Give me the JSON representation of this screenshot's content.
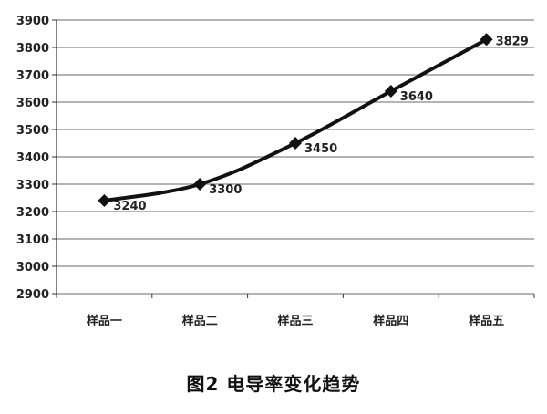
{
  "chart_data": {
    "type": "line",
    "categories": [
      "样品一",
      "样品二",
      "样品三",
      "样品四",
      "样品五"
    ],
    "series": [
      {
        "values": [
          3240,
          3300,
          3450,
          3640,
          3829
        ]
      }
    ],
    "data_labels": [
      "3240",
      "3300",
      "3450",
      "3640",
      "3829"
    ],
    "ylim": [
      2900,
      3900
    ],
    "y_ticks": [
      "2900",
      "3000",
      "3100",
      "3200",
      "3300",
      "3400",
      "3500",
      "3600",
      "3700",
      "3800",
      "3900"
    ],
    "grid": true,
    "marker": "diamond",
    "line_color": "#111111",
    "grid_color": "#888888",
    "title": "图2 电导率变化趋势"
  }
}
